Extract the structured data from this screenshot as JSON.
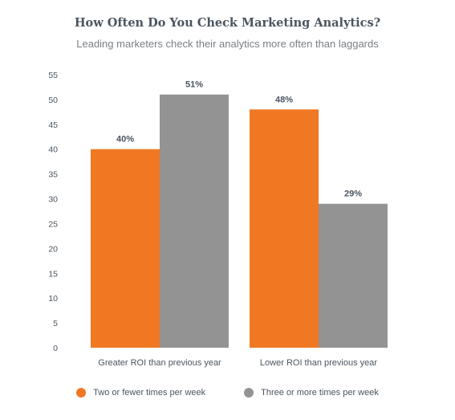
{
  "chart_data": {
    "type": "bar",
    "title": "How Often Do You Check Marketing Analytics?",
    "subtitle": "Leading marketers check their analytics more often than laggards",
    "categories": [
      "Greater ROI than previous year",
      "Lower ROI than previous year"
    ],
    "series": [
      {
        "name": "Two or fewer times per week",
        "values": [
          40,
          48
        ],
        "labels": [
          "40%",
          "48%"
        ],
        "color": "#f07823"
      },
      {
        "name": "Three or more times per week",
        "values": [
          51,
          29
        ],
        "labels": [
          "51%",
          "29%"
        ],
        "color": "#939393"
      }
    ],
    "ylim": [
      0,
      55
    ],
    "yticks": [
      0,
      5,
      10,
      15,
      20,
      25,
      30,
      35,
      40,
      45,
      50,
      55
    ],
    "xlabel": "",
    "ylabel": "",
    "grid": false,
    "legend": "bottom"
  }
}
